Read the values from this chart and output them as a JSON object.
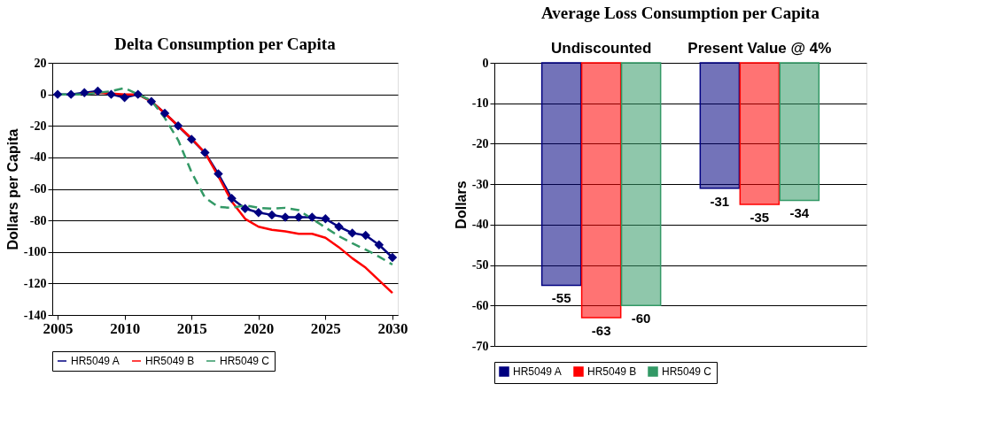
{
  "chart_data": [
    {
      "type": "line",
      "title": "Delta Consumption per Capita",
      "ylabel": "Dollars per Capita",
      "x": [
        2005,
        2006,
        2007,
        2008,
        2009,
        2010,
        2011,
        2012,
        2013,
        2014,
        2015,
        2016,
        2017,
        2018,
        2019,
        2020,
        2021,
        2022,
        2023,
        2024,
        2025,
        2026,
        2027,
        2028,
        2029,
        2030
      ],
      "xlim": [
        2004.6,
        2030.4
      ],
      "xticks": [
        2005,
        2010,
        2015,
        2020,
        2025,
        2030
      ],
      "ylim": [
        -140,
        20
      ],
      "yticks": [
        -140,
        -120,
        -100,
        -80,
        -60,
        -40,
        -20,
        0,
        20
      ],
      "grid": "y",
      "legend": "bottom",
      "series": [
        {
          "name": "HR5049 A",
          "color": "#000080",
          "marker": "diamond",
          "line_style": "solid",
          "values": [
            0,
            0,
            1,
            2,
            0,
            -2,
            0,
            -4.5,
            -12,
            -20,
            -28.5,
            -37,
            -50.5,
            -66,
            -72.5,
            -75,
            -76.5,
            -78,
            -78,
            -78,
            -79,
            -84,
            -88,
            -89.5,
            -95.5,
            -103.5
          ]
        },
        {
          "name": "HR5049 B",
          "color": "#ff0000",
          "marker": "none",
          "line_style": "solid",
          "values": [
            null,
            null,
            0.5,
            1,
            0.5,
            0,
            0,
            -4.5,
            -12,
            -20,
            -28,
            -37,
            -52,
            -68,
            -79,
            -84,
            -86,
            -87,
            -88.5,
            -88.5,
            -91,
            -97,
            -104,
            -110,
            -118,
            -126
          ]
        },
        {
          "name": "HR5049 C",
          "color": "#339966",
          "marker": "none",
          "line_style": "dashed",
          "values": [
            0,
            0,
            0,
            1,
            2,
            4,
            0,
            -4,
            -15,
            -29,
            -49.5,
            -65.5,
            -71.5,
            -72,
            -70.5,
            -72,
            -72.5,
            -72,
            -73.5,
            -79,
            -84.5,
            -90,
            -94.5,
            -98.5,
            -103,
            -108
          ]
        }
      ]
    },
    {
      "type": "bar",
      "title": "Average Loss Consumption per Capita",
      "ylabel": "Dollars",
      "categories": [
        "Undiscounted",
        "Present Value @ 4%"
      ],
      "ylim": [
        -70,
        0
      ],
      "yticks": [
        -70,
        -60,
        -50,
        -40,
        -30,
        -20,
        -10,
        0
      ],
      "grid": "y",
      "legend": "bottom",
      "data_labels": true,
      "series": [
        {
          "name": "HR5049 A",
          "color": "#000080",
          "values": [
            -55,
            -31
          ]
        },
        {
          "name": "HR5049 B",
          "color": "#ff0000",
          "values": [
            -63,
            -35
          ]
        },
        {
          "name": "HR5049 C",
          "color": "#339966",
          "values": [
            -60,
            -34
          ]
        }
      ]
    }
  ]
}
